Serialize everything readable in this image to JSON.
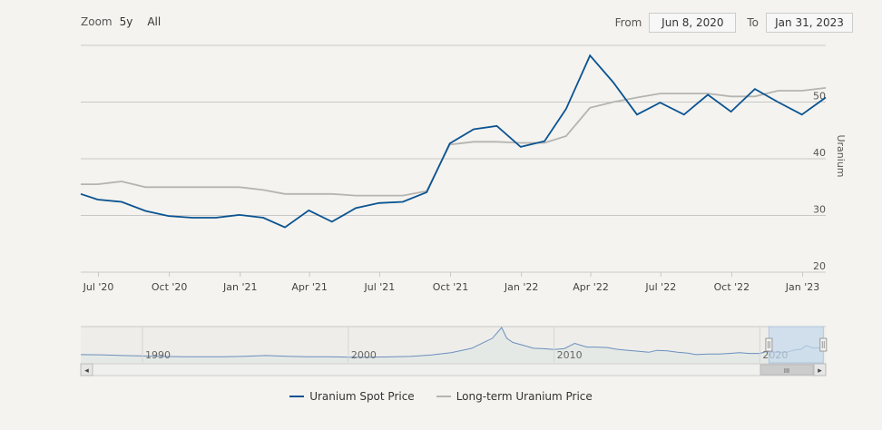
{
  "zoom": {
    "label": "Zoom",
    "buttons": [
      "5y",
      "All"
    ]
  },
  "range": {
    "from_label": "From",
    "from_value": "Jun 8, 2020",
    "to_label": "To",
    "to_value": "Jan 31, 2023"
  },
  "colors": {
    "spot": "#0a5392",
    "longterm": "#b4b4b0",
    "grid": "#c8c8c8",
    "navigator_fill": "#c4d9ec"
  },
  "chart_data": {
    "type": "line",
    "ylabel": "Uranium",
    "ylim": [
      20,
      60
    ],
    "yticks": [
      20,
      30,
      40,
      50
    ],
    "xlim": [
      "2020-06-08",
      "2023-01-31"
    ],
    "xticks": [
      {
        "date": "2020-07-01",
        "label": "Jul '20"
      },
      {
        "date": "2020-10-01",
        "label": "Oct '20"
      },
      {
        "date": "2021-01-01",
        "label": "Jan '21"
      },
      {
        "date": "2021-04-01",
        "label": "Apr '21"
      },
      {
        "date": "2021-07-01",
        "label": "Jul '21"
      },
      {
        "date": "2021-10-01",
        "label": "Oct '21"
      },
      {
        "date": "2022-01-01",
        "label": "Jan '22"
      },
      {
        "date": "2022-04-01",
        "label": "Apr '22"
      },
      {
        "date": "2022-07-01",
        "label": "Jul '22"
      },
      {
        "date": "2022-10-01",
        "label": "Oct '22"
      },
      {
        "date": "2023-01-01",
        "label": "Jan '23"
      }
    ],
    "series": [
      {
        "name": "Uranium Spot Price",
        "points": [
          [
            "2020-06-08",
            33.8
          ],
          [
            "2020-06-30",
            32.8
          ],
          [
            "2020-07-31",
            32.4
          ],
          [
            "2020-08-31",
            30.8
          ],
          [
            "2020-09-30",
            29.9
          ],
          [
            "2020-10-31",
            29.6
          ],
          [
            "2020-11-30",
            29.6
          ],
          [
            "2020-12-31",
            30.1
          ],
          [
            "2021-01-31",
            29.6
          ],
          [
            "2021-02-28",
            27.9
          ],
          [
            "2021-03-31",
            30.9
          ],
          [
            "2021-04-30",
            28.9
          ],
          [
            "2021-05-31",
            31.3
          ],
          [
            "2021-06-30",
            32.2
          ],
          [
            "2021-07-31",
            32.4
          ],
          [
            "2021-08-31",
            34.1
          ],
          [
            "2021-09-30",
            42.7
          ],
          [
            "2021-10-31",
            45.2
          ],
          [
            "2021-11-30",
            45.8
          ],
          [
            "2021-12-31",
            42.1
          ],
          [
            "2022-01-31",
            43.1
          ],
          [
            "2022-02-28",
            48.8
          ],
          [
            "2022-03-31",
            58.2
          ],
          [
            "2022-04-30",
            53.5
          ],
          [
            "2022-05-31",
            47.8
          ],
          [
            "2022-06-30",
            49.9
          ],
          [
            "2022-07-31",
            47.8
          ],
          [
            "2022-08-31",
            51.3
          ],
          [
            "2022-09-30",
            48.3
          ],
          [
            "2022-10-31",
            52.3
          ],
          [
            "2022-11-30",
            50.0
          ],
          [
            "2022-12-31",
            47.8
          ],
          [
            "2023-01-31",
            50.8
          ]
        ]
      },
      {
        "name": "Long-term Uranium Price",
        "points": [
          [
            "2020-06-08",
            35.5
          ],
          [
            "2020-06-30",
            35.5
          ],
          [
            "2020-07-31",
            36.0
          ],
          [
            "2020-08-31",
            35.0
          ],
          [
            "2020-09-30",
            35.0
          ],
          [
            "2020-10-31",
            35.0
          ],
          [
            "2020-11-30",
            35.0
          ],
          [
            "2020-12-31",
            35.0
          ],
          [
            "2021-01-31",
            34.5
          ],
          [
            "2021-02-28",
            33.8
          ],
          [
            "2021-03-31",
            33.8
          ],
          [
            "2021-04-30",
            33.8
          ],
          [
            "2021-05-31",
            33.5
          ],
          [
            "2021-06-30",
            33.5
          ],
          [
            "2021-07-31",
            33.5
          ],
          [
            "2021-08-31",
            34.3
          ],
          [
            "2021-09-30",
            42.5
          ],
          [
            "2021-10-31",
            43.0
          ],
          [
            "2021-11-30",
            43.0
          ],
          [
            "2021-12-31",
            42.8
          ],
          [
            "2022-01-31",
            42.8
          ],
          [
            "2022-02-28",
            44.0
          ],
          [
            "2022-03-31",
            49.0
          ],
          [
            "2022-04-30",
            50.0
          ],
          [
            "2022-05-31",
            50.8
          ],
          [
            "2022-06-30",
            51.5
          ],
          [
            "2022-07-31",
            51.5
          ],
          [
            "2022-08-31",
            51.5
          ],
          [
            "2022-09-30",
            51.0
          ],
          [
            "2022-10-31",
            51.0
          ],
          [
            "2022-11-30",
            52.0
          ],
          [
            "2022-12-31",
            52.0
          ],
          [
            "2023-01-31",
            52.5
          ]
        ]
      }
    ],
    "legend": "bottom-center",
    "navigator": {
      "xlim": [
        1987.0,
        2023.2
      ],
      "year_labels": [
        "1990",
        "2000",
        "2010",
        "2020"
      ],
      "selected_range": [
        2020.44,
        2023.08
      ],
      "series": [
        [
          1987.0,
          20
        ],
        [
          1988,
          19
        ],
        [
          1989,
          16
        ],
        [
          1990,
          14
        ],
        [
          1991,
          12
        ],
        [
          1992,
          11
        ],
        [
          1993,
          11
        ],
        [
          1994,
          11
        ],
        [
          1995,
          13
        ],
        [
          1996,
          16
        ],
        [
          1997,
          13
        ],
        [
          1998,
          11
        ],
        [
          1999,
          11
        ],
        [
          2000,
          9
        ],
        [
          2001,
          9
        ],
        [
          2002,
          10
        ],
        [
          2003,
          12
        ],
        [
          2004,
          18
        ],
        [
          2005,
          28
        ],
        [
          2006,
          47
        ],
        [
          2007.0,
          90
        ],
        [
          2007.45,
          136
        ],
        [
          2007.7,
          90
        ],
        [
          2008,
          72
        ],
        [
          2008.5,
          60
        ],
        [
          2009,
          47
        ],
        [
          2009.5,
          45
        ],
        [
          2010,
          42
        ],
        [
          2010.5,
          46
        ],
        [
          2011.0,
          68
        ],
        [
          2011.3,
          60
        ],
        [
          2011.6,
          52
        ],
        [
          2012,
          52
        ],
        [
          2012.6,
          50
        ],
        [
          2013,
          43
        ],
        [
          2013.6,
          38
        ],
        [
          2014,
          35
        ],
        [
          2014.6,
          30
        ],
        [
          2015,
          38
        ],
        [
          2015.5,
          36
        ],
        [
          2016,
          30
        ],
        [
          2016.5,
          26
        ],
        [
          2016.9,
          20
        ],
        [
          2017.5,
          22
        ],
        [
          2018,
          22
        ],
        [
          2018.5,
          25
        ],
        [
          2019,
          28
        ],
        [
          2019.5,
          25
        ],
        [
          2020.0,
          25
        ],
        [
          2020.3,
          33
        ],
        [
          2020.8,
          30
        ],
        [
          2021.3,
          30
        ],
        [
          2021.7,
          40
        ],
        [
          2022.0,
          43
        ],
        [
          2022.25,
          58
        ],
        [
          2022.6,
          48
        ],
        [
          2023.08,
          51
        ]
      ]
    }
  },
  "navigator_scroll": {
    "left_arrow": "◂",
    "right_arrow": "▸",
    "grip": "III"
  }
}
